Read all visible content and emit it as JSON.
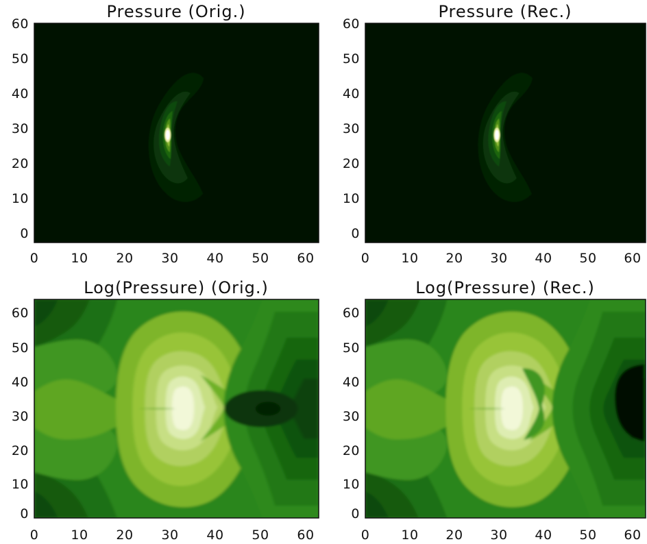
{
  "chart_data": [
    {
      "type": "heatmap",
      "title": "Pressure (Orig.)",
      "xlim": [
        0,
        63
      ],
      "ylim": [
        0,
        63
      ],
      "xticks": [
        "0",
        "10",
        "20",
        "30",
        "40",
        "50",
        "60"
      ],
      "yticks": [
        "0",
        "10",
        "20",
        "30",
        "40",
        "50",
        "60"
      ],
      "field": "pressure",
      "variant": "original",
      "peak": {
        "x": 29.5,
        "y": 31
      },
      "colormap": [
        "#001200",
        "#003200",
        "#0f4d08",
        "#27700f",
        "#4e9218",
        "#7cb22d",
        "#b7d155",
        "#eef2aa",
        "#ffffff"
      ]
    },
    {
      "type": "heatmap",
      "title": "Pressure (Rec.)",
      "xlim": [
        0,
        63
      ],
      "ylim": [
        0,
        63
      ],
      "xticks": [
        "0",
        "10",
        "20",
        "30",
        "40",
        "50",
        "60"
      ],
      "yticks": [
        "0",
        "10",
        "20",
        "30",
        "40",
        "50",
        "60"
      ],
      "field": "pressure",
      "variant": "reconstructed",
      "peak": {
        "x": 29.5,
        "y": 31
      },
      "colormap": [
        "#001200",
        "#003200",
        "#0f4d08",
        "#27700f",
        "#4e9218",
        "#7cb22d",
        "#b7d155",
        "#eef2aa",
        "#ffffff"
      ]
    },
    {
      "type": "heatmap",
      "title": "Log(Pressure) (Orig.)",
      "xlim": [
        0,
        63
      ],
      "ylim": [
        0,
        63
      ],
      "xticks": [
        "0",
        "10",
        "20",
        "30",
        "40",
        "50",
        "60"
      ],
      "yticks": [
        "0",
        "10",
        "20",
        "30",
        "40",
        "50",
        "60"
      ],
      "field": "log_pressure",
      "variant": "original",
      "peak": {
        "x": 30,
        "y": 32
      },
      "minimum": {
        "x": 52,
        "y": 31
      },
      "colormap": [
        "#001a00",
        "#0b3d07",
        "#176411",
        "#23801a",
        "#3c9621",
        "#67ad28",
        "#8fbf2f",
        "#b3d25f",
        "#d8ea9d",
        "#f1f8d3"
      ]
    },
    {
      "type": "heatmap",
      "title": "Log(Pressure) (Rec.)",
      "xlim": [
        0,
        63
      ],
      "ylim": [
        0,
        63
      ],
      "xticks": [
        "0",
        "10",
        "20",
        "30",
        "40",
        "50",
        "60"
      ],
      "yticks": [
        "0",
        "10",
        "20",
        "30",
        "40",
        "50",
        "60"
      ],
      "field": "log_pressure",
      "variant": "reconstructed",
      "peak": {
        "x": 30,
        "y": 32
      },
      "minimum": {
        "x": 60,
        "y": 35
      },
      "colormap": [
        "#000800",
        "#0b3d07",
        "#176411",
        "#23801a",
        "#3c9621",
        "#67ad28",
        "#8fbf2f",
        "#b3d25f",
        "#d8ea9d",
        "#f1f8d3"
      ]
    }
  ]
}
